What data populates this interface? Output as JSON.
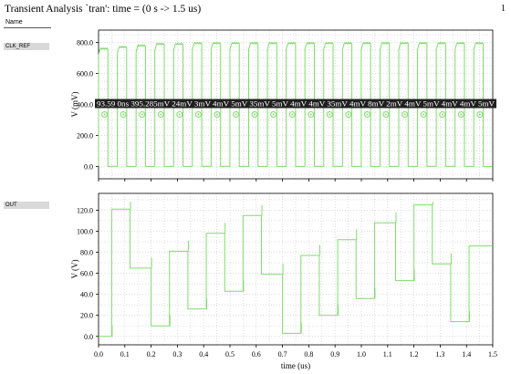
{
  "window": {
    "title": "Transient Analysis `tran': time = (0 s -> 1.5 us)",
    "corner_label": "1",
    "list_header": "Name"
  },
  "signals": [
    {
      "name": "CLK_REF"
    },
    {
      "name": "OUT"
    }
  ],
  "colors": {
    "trace": "#7fdc6a",
    "grid": "#c8c8c8",
    "marker_bar": "#202020",
    "marker_text": "#ffffff"
  },
  "markers": {
    "labels": [
      "93.59",
      "0ns",
      "395.285mV",
      "24mV",
      "3mV",
      "4mV",
      "5mV",
      "35mV",
      "5mV",
      "4mV",
      "4mV",
      "35mV",
      "4mV",
      "8mV",
      "2mV",
      "4mV",
      "5mV",
      "4mV",
      "4mV",
      "5mV"
    ]
  },
  "chart_data": [
    {
      "type": "line",
      "name": "CLK_REF",
      "ylabel": "V (mV)",
      "xlabel": "",
      "xlim": [
        0,
        1.5
      ],
      "ylim": [
        -80,
        880
      ],
      "yticks": [
        "800.0",
        "600.0",
        "400.0",
        "200.0",
        "0.0"
      ],
      "yticks_values": [
        800,
        600,
        400,
        200,
        0
      ],
      "grid": true,
      "period_us": 0.0714,
      "high_mV": [
        760,
        770,
        780,
        790,
        790,
        795,
        795,
        795,
        795,
        795,
        795,
        795,
        795,
        795,
        795,
        795,
        795,
        795,
        795,
        795,
        795
      ],
      "low_mV": 0
    },
    {
      "type": "line",
      "name": "OUT",
      "ylabel": "V (V)",
      "xlabel": "time (us)",
      "xlim": [
        0,
        1.5
      ],
      "ylim": [
        -8,
        136
      ],
      "xticks": [
        "0.0",
        "0.1",
        "0.2",
        "0.3",
        "0.4",
        "0.5",
        "0.6",
        "0.7",
        "0.8",
        "0.9",
        "1.0",
        "1.1",
        "1.2",
        "1.3",
        "1.4",
        "1.5"
      ],
      "yticks": [
        "120.0",
        "100.0",
        "80.0",
        "60.0",
        "40.0",
        "20.0",
        "0.0"
      ],
      "yticks_values": [
        120,
        100,
        80,
        60,
        40,
        20,
        0
      ],
      "grid": true,
      "steps": [
        [
          0,
          0
        ],
        [
          0.05,
          121
        ],
        [
          0.12,
          65
        ],
        [
          0.2,
          10
        ],
        [
          0.27,
          81
        ],
        [
          0.34,
          26
        ],
        [
          0.41,
          98
        ],
        [
          0.48,
          43
        ],
        [
          0.55,
          115
        ],
        [
          0.62,
          59
        ],
        [
          0.7,
          3
        ],
        [
          0.77,
          77
        ],
        [
          0.84,
          20
        ],
        [
          0.91,
          92
        ],
        [
          0.98,
          36
        ],
        [
          1.05,
          108
        ],
        [
          1.13,
          53
        ],
        [
          1.2,
          125
        ],
        [
          1.27,
          69
        ],
        [
          1.34,
          14
        ],
        [
          1.41,
          86
        ],
        [
          1.5,
          86
        ]
      ]
    }
  ]
}
